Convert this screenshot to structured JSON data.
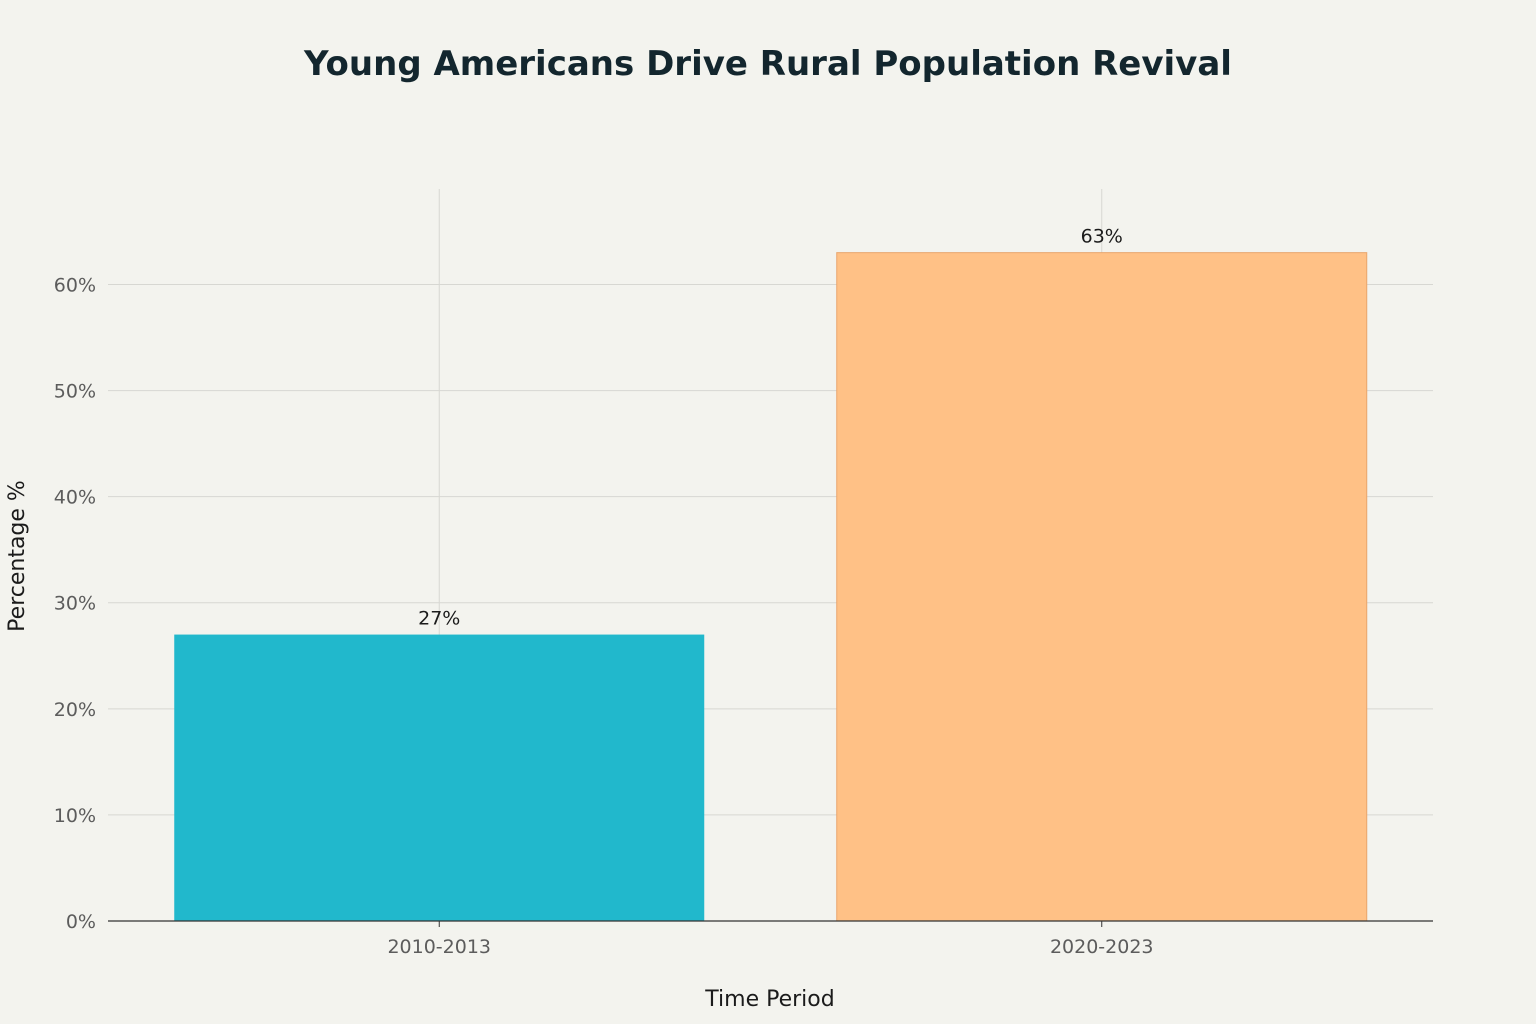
{
  "chart_data": {
    "type": "bar",
    "title": "Young Americans Drive Rural Population Revival",
    "xlabel": "Time Period",
    "ylabel": "Percentage %",
    "categories": [
      "2010-2013",
      "2020-2023"
    ],
    "values": [
      27,
      63
    ],
    "data_labels": [
      "27%",
      "63%"
    ],
    "bar_colors": [
      "#21b8cc",
      "#ffc186"
    ],
    "ylim": [
      0,
      69
    ],
    "yticks": [
      0,
      10,
      20,
      30,
      40,
      50,
      60
    ],
    "ytick_labels": [
      "0%",
      "10%",
      "20%",
      "30%",
      "40%",
      "50%",
      "60%"
    ],
    "grid": true,
    "legend": "none"
  }
}
